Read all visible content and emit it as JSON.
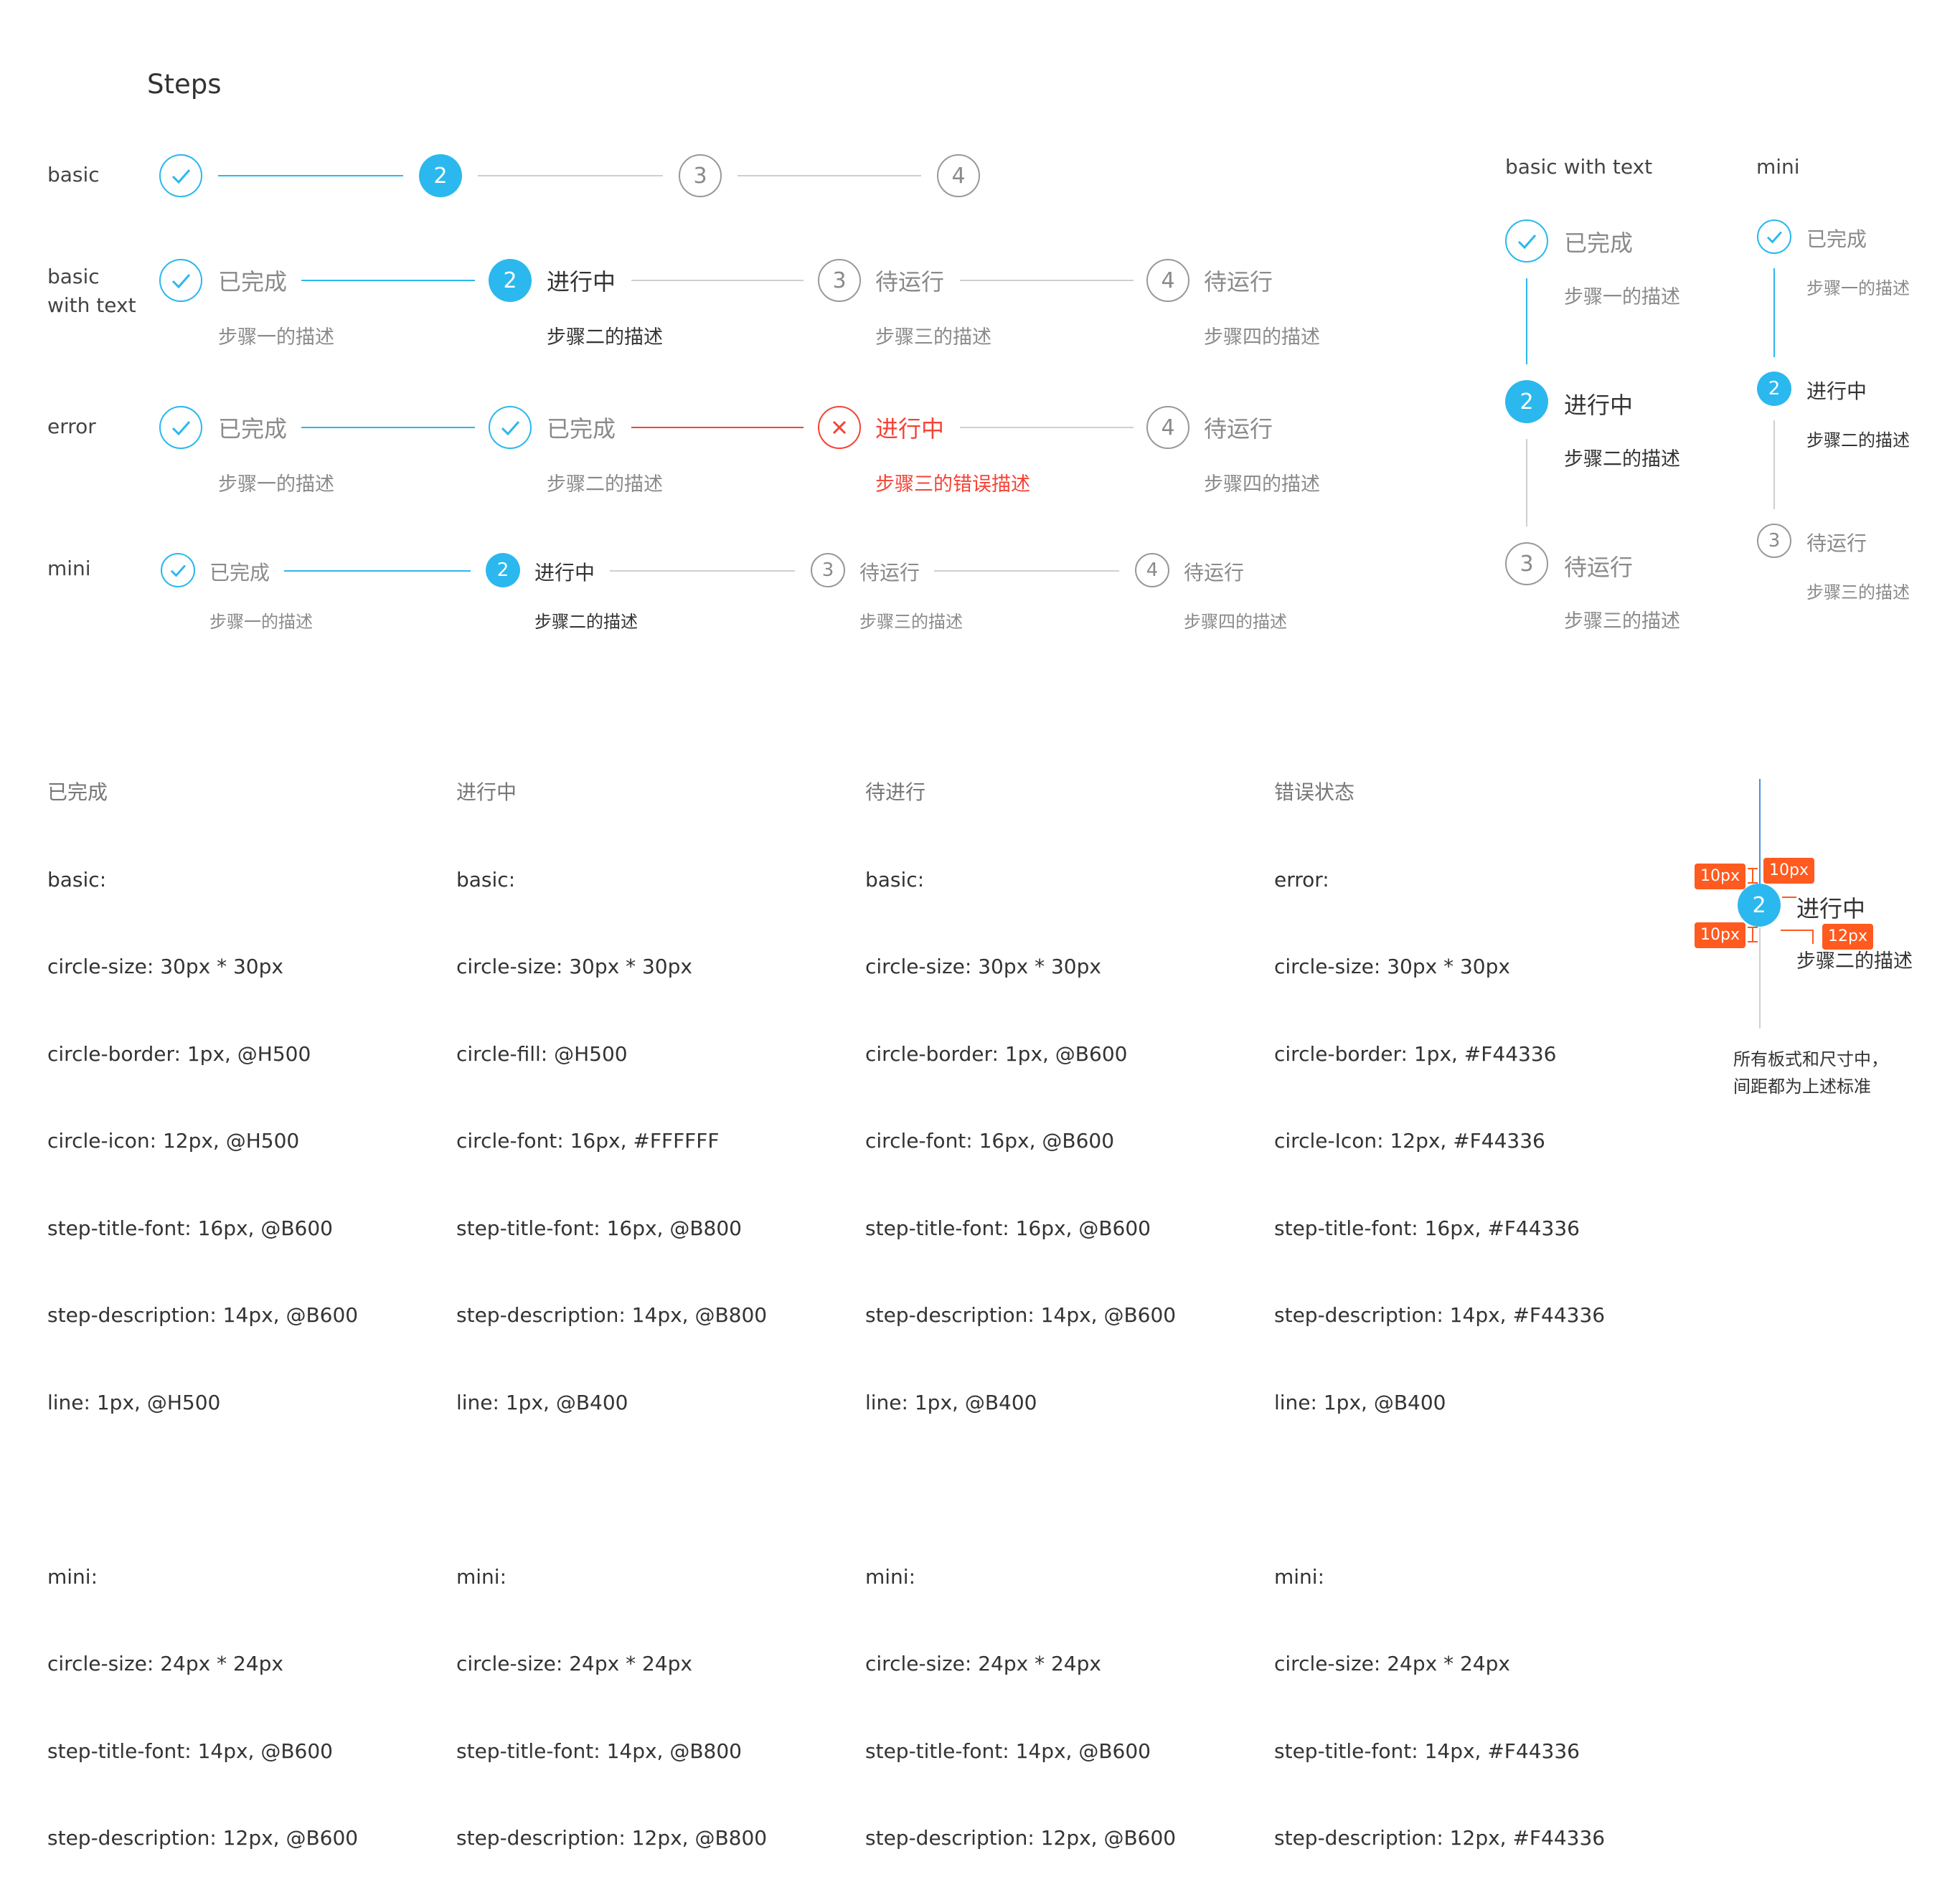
{
  "title": "Steps",
  "colors": {
    "primary": "#2bb8ee",
    "error": "#f44336",
    "wait": "#999999",
    "line_gray": "#cfcfcf",
    "annotation": "#ff5a1f"
  },
  "rows": {
    "basic": {
      "label": "basic",
      "nums": [
        "2",
        "3",
        "4"
      ]
    },
    "basic_text": {
      "label_line1": "basic",
      "label_line2": "with text",
      "steps": [
        {
          "num": "",
          "title": "已完成",
          "desc": "步骤一的描述"
        },
        {
          "num": "2",
          "title": "进行中",
          "desc": "步骤二的描述"
        },
        {
          "num": "3",
          "title": "待运行",
          "desc": "步骤三的描述"
        },
        {
          "num": "4",
          "title": "待运行",
          "desc": "步骤四的描述"
        }
      ]
    },
    "error": {
      "label": "error",
      "steps": [
        {
          "num": "",
          "title": "已完成",
          "desc": "步骤一的描述"
        },
        {
          "num": "",
          "title": "已完成",
          "desc": "步骤二的描述"
        },
        {
          "num": "",
          "title": "进行中",
          "desc": "步骤三的错误描述"
        },
        {
          "num": "4",
          "title": "待运行",
          "desc": "步骤四的描述"
        }
      ]
    },
    "mini": {
      "label": "mini",
      "steps": [
        {
          "num": "",
          "title": "已完成",
          "desc": "步骤一的描述"
        },
        {
          "num": "2",
          "title": "进行中",
          "desc": "步骤二的描述"
        },
        {
          "num": "3",
          "title": "待运行",
          "desc": "步骤三的描述"
        },
        {
          "num": "4",
          "title": "待运行",
          "desc": "步骤四的描述"
        }
      ]
    }
  },
  "vertical_text": {
    "label": "basic with text",
    "steps": [
      {
        "num": "",
        "title": "已完成",
        "desc": "步骤一的描述"
      },
      {
        "num": "2",
        "title": "进行中",
        "desc": "步骤二的描述"
      },
      {
        "num": "3",
        "title": "待运行",
        "desc": "步骤三的描述"
      }
    ]
  },
  "vertical_mini": {
    "label": "mini",
    "steps": [
      {
        "num": "",
        "title": "已完成",
        "desc": "步骤一的描述"
      },
      {
        "num": "2",
        "title": "进行中",
        "desc": "步骤二的描述"
      },
      {
        "num": "3",
        "title": "待运行",
        "desc": "步骤三的描述"
      }
    ]
  },
  "specs": [
    {
      "head": "已完成",
      "lines": [
        "basic:",
        "circle-size: 30px * 30px",
        "circle-border: 1px, @H500",
        "circle-icon: 12px, @H500",
        "step-title-font: 16px, @B600",
        "step-description: 14px, @B600",
        "line: 1px, @H500"
      ],
      "mini_lines": [
        "mini:",
        "circle-size: 24px * 24px",
        "step-title-font: 14px, @B600",
        "step-description: 12px, @B600"
      ]
    },
    {
      "head": "进行中",
      "lines": [
        "basic:",
        "circle-size: 30px * 30px",
        "circle-fill: @H500",
        "circle-font: 16px, #FFFFFF",
        "step-title-font: 16px, @B800",
        "step-description: 14px, @B800",
        "line: 1px, @B400"
      ],
      "mini_lines": [
        "mini:",
        "circle-size: 24px * 24px",
        "step-title-font: 14px, @B800",
        "step-description: 12px, @B800"
      ]
    },
    {
      "head": "待进行",
      "lines": [
        "basic:",
        "circle-size: 30px * 30px",
        "circle-border: 1px, @B600",
        "circle-font: 16px, @B600",
        "step-title-font: 16px, @B600",
        "step-description: 14px, @B600",
        "line: 1px, @B400"
      ],
      "mini_lines": [
        "mini:",
        "circle-size: 24px * 24px",
        "step-title-font: 14px, @B600",
        "step-description: 12px, @B600"
      ]
    },
    {
      "head": "错误状态",
      "lines": [
        "error:",
        "circle-size: 30px * 30px",
        "circle-border: 1px, #F44336",
        "circle-Icon: 12px, #F44336",
        "step-title-font: 16px, #F44336",
        "step-description: 14px, #F44336",
        "line: 1px, @B400"
      ],
      "mini_lines": [
        "mini:",
        "circle-size: 24px * 24px",
        "step-title-font: 14px, #F44336",
        "step-description: 12px, #F44336"
      ]
    }
  ],
  "annotation": {
    "num": "2",
    "title": "进行中",
    "desc": "步骤二的描述",
    "tags": [
      "10px",
      "10px",
      "10px",
      "12px"
    ],
    "note_line1": "所有板式和尺寸中，",
    "note_line2": "间距都为上述标准"
  }
}
